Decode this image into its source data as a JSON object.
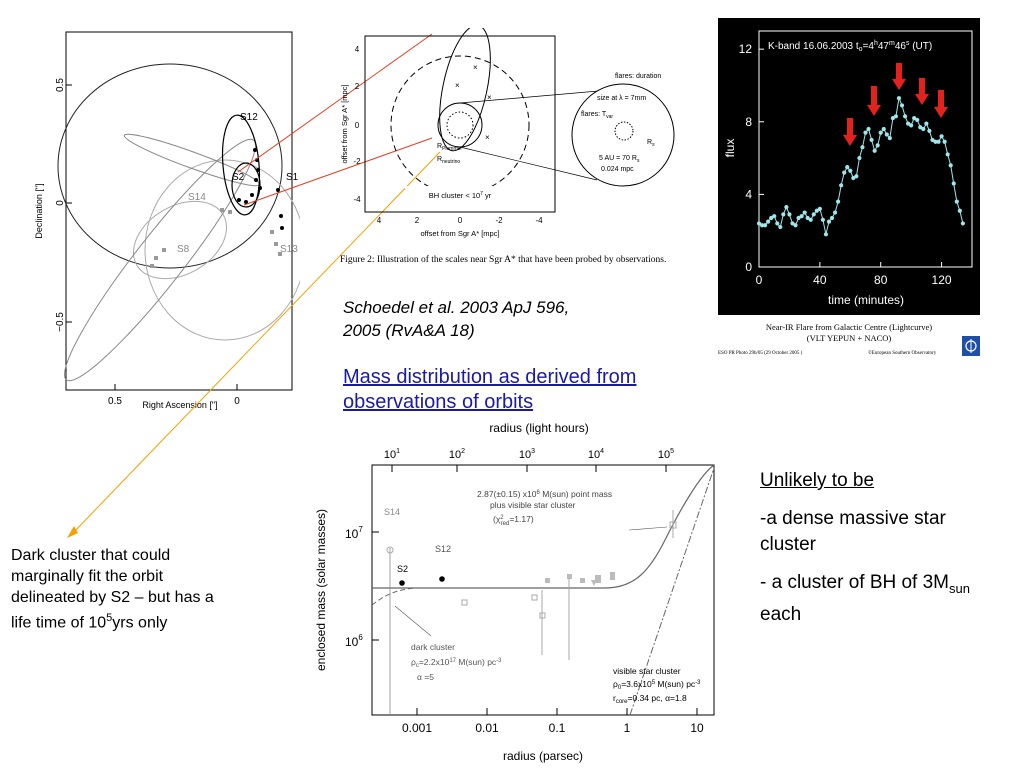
{
  "orbit_plot": {
    "ylabel": "Declination [\"]",
    "xlabel": "Right Ascension [\"]",
    "yticks": [
      "0.5",
      "0",
      "−0.5"
    ],
    "xticks": [
      "0.5",
      "0"
    ],
    "stars": [
      "S12",
      "S2",
      "S1",
      "S14",
      "S8",
      "S13"
    ]
  },
  "scales_plot": {
    "ylabel": "offset from Sgr A* [mpc]",
    "xlabel": "offset from Sgr A* [mpc]",
    "yticks": [
      "4",
      "2",
      "0",
      "-2",
      "-4"
    ],
    "xticks": [
      "4",
      "2",
      "0",
      "-2",
      "-4"
    ],
    "r_plummer": "R",
    "r_plummer_sub": "Plummer",
    "r_neutrino": "R",
    "r_neutrino_sub": "neutrino",
    "bh_cluster": "BH cluster < 10",
    "bh_cluster_exp": "7",
    "bh_cluster_unit": " yr",
    "flares_duration": "flares: duration",
    "size_at": "size at λ = 7mm",
    "flares_t": "flares: T",
    "flares_t_sub": "var",
    "rs": "R",
    "rs_sub": "s",
    "au": "5 AU = 70 R",
    "au_sub": "s",
    "mpc": "0.024 mpc",
    "caption": "Figure 2:  Illustration of the scales near Sgr A* that have been probed by observations."
  },
  "flare_plot": {
    "title_a": "K-band 16.06.2003 t",
    "title_sub": "o",
    "title_b": "=4",
    "title_h": "h",
    "title_c": "47",
    "title_m": "m",
    "title_d": "46",
    "title_s": "s",
    "title_e": " (UT)",
    "ylabel": "flux",
    "xlabel": "time (minutes)",
    "yticks": [
      "12",
      "8",
      "4",
      "0"
    ],
    "xticks": [
      "0",
      "40",
      "80",
      "120"
    ],
    "caption_line1": "Near-IR Flare from Galactic Centre  (Lightcurve)",
    "caption_line2": "(VLT YEPUN + NACO)",
    "photo_ref": "ESO PR Photo 29b/05 (29 October 2005 )",
    "copyright": "©European Southern Observatory",
    "colors": {
      "background": "#000000",
      "points": "#9fe6ea",
      "arrows": "#e3231b"
    }
  },
  "citation": {
    "line1": "Schoedel et al. 2003 ApJ 596,",
    "line2": "2005 (RvA&A 18)"
  },
  "mass_link": {
    "line1": "Mass distribution as derived from",
    "line2": "observations of orbits"
  },
  "mass_plot": {
    "top_axis_label": "radius (light hours)",
    "xlabel": "radius (parsec)",
    "ylabel": "enclosed mass (solar masses)",
    "xticks": [
      "0.001",
      "0.01",
      "0.1",
      "1",
      "10"
    ],
    "top_ticks": [
      "10",
      "10",
      "10",
      "10",
      "10"
    ],
    "top_exps": [
      "1",
      "2",
      "3",
      "4",
      "5"
    ],
    "yticks_base": [
      "10",
      "10"
    ],
    "yticks_exp": [
      "7",
      "6"
    ],
    "point_mass_1": "2.87(±0.15) x10",
    "point_mass_1_exp": "6",
    "point_mass_1_end": " M(sun) point mass",
    "point_mass_2": "plus visible star cluster",
    "point_mass_3a": "(χ",
    "point_mass_3_exp": "2",
    "point_mass_3_sub": "red",
    "point_mass_3b": "=1.17)",
    "s14": "S14",
    "s12": "S12",
    "s2": "S2",
    "dark1": "dark cluster",
    "dark2a": "ρ",
    "dark2_sub": "c",
    "dark2b": "=2.2x10",
    "dark2_exp": "17",
    "dark2c": " M(sun) pc",
    "dark2_exp2": "-3",
    "dark3": "α =5",
    "vis1": "visible star cluster",
    "vis2a": "ρ",
    "vis2_sub": "0",
    "vis2b": "=3.6x10",
    "vis2_exp": "5",
    "vis2c": " M(sun) pc",
    "vis2_exp2": "-3",
    "vis3a": "r",
    "vis3_sub": "core",
    "vis3b": "=0.34 pc, α=1.8"
  },
  "dark_cluster_note": {
    "text_a": "Dark cluster that could marginally fit the orbit delineated by S2 – but has a life time of 10",
    "text_exp": "5",
    "text_b": "yrs only"
  },
  "unlikely": {
    "heading": "Unlikely to be",
    "item1": "-a dense massive star cluster",
    "item2a": "- a cluster of BH of 3M",
    "item2_sub": "sun",
    "item2b": " each"
  },
  "flux_series": {
    "x": [
      0,
      2,
      4,
      6,
      8,
      10,
      12,
      14,
      16,
      18,
      20,
      22,
      24,
      26,
      28,
      30,
      32,
      34,
      36,
      38,
      40,
      42,
      44,
      46,
      48,
      50,
      52,
      54,
      56,
      58,
      60,
      62,
      64,
      66,
      68,
      70,
      72,
      74,
      76,
      78,
      80,
      82,
      84,
      86,
      88,
      90,
      92,
      94,
      96,
      98,
      100,
      102,
      104,
      106,
      108,
      110,
      112,
      114,
      116,
      118,
      120,
      122,
      124,
      126,
      128,
      130,
      132,
      134
    ],
    "y": [
      2.4,
      2.3,
      2.3,
      2.5,
      2.7,
      2.8,
      2.4,
      2.2,
      2.9,
      3.3,
      2.9,
      2.4,
      2.3,
      2.7,
      2.8,
      3.0,
      2.7,
      2.6,
      2.9,
      3.1,
      3.2,
      2.6,
      1.8,
      2.5,
      2.7,
      3.0,
      3.6,
      4.5,
      5.2,
      5.5,
      5.3,
      4.9,
      5.0,
      6.0,
      6.6,
      7.4,
      7.6,
      7.0,
      6.4,
      6.7,
      7.4,
      7.6,
      7.3,
      7.1,
      8.2,
      8.3,
      9.3,
      8.9,
      8.3,
      7.9,
      7.8,
      8.2,
      8.1,
      7.7,
      7.6,
      7.9,
      7.5,
      7.0,
      6.9,
      6.9,
      7.2,
      6.9,
      6.2,
      5.6,
      4.6,
      3.6,
      3.1,
      2.4
    ]
  }
}
